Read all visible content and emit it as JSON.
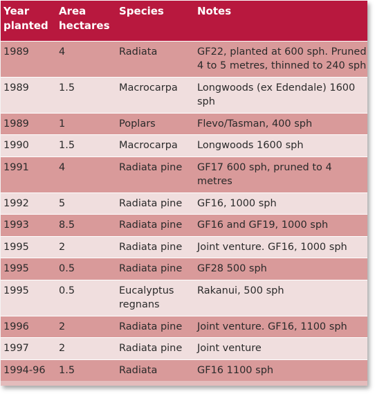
{
  "table": {
    "headers": [
      "Year planted",
      "Area hectares",
      "Species",
      "Notes"
    ],
    "rows": [
      {
        "year": "1989",
        "area": "4",
        "species": "Radiata",
        "notes": "GF22, planted at 600 sph. Pruned 4 to 5 metres, thinned to 240 sph"
      },
      {
        "year": "1989",
        "area": "1.5",
        "species": "Macrocarpa",
        "notes": "Longwoods (ex Edendale) 1600 sph"
      },
      {
        "year": "1989",
        "area": "1",
        "species": "Poplars",
        "notes": "Flevo/Tasman, 400 sph"
      },
      {
        "year": "1990",
        "area": "1.5",
        "species": "Macrocarpa",
        "notes": "Longwoods 1600 sph"
      },
      {
        "year": "1991",
        "area": "4",
        "species": "Radiata pine",
        "notes": "GF17 600 sph, pruned to 4 metres"
      },
      {
        "year": "1992",
        "area": "5",
        "species": "Radiata pine",
        "notes": "GF16, 1000 sph"
      },
      {
        "year": "1993",
        "area": "8.5",
        "species": "Radiata pine",
        "notes": "GF16 and GF19, 1000 sph"
      },
      {
        "year": "1995",
        "area": "2",
        "species": "Radiata pine",
        "notes": "Joint venture. GF16, 1000 sph"
      },
      {
        "year": "1995",
        "area": "0.5",
        "species": "Radiata pine",
        "notes": "GF28 500 sph"
      },
      {
        "year": "1995",
        "area": "0.5",
        "species": "Eucalyptus regnans",
        "notes": "Rakanui, 500 sph"
      },
      {
        "year": "1996",
        "area": "2",
        "species": "Radiata pine",
        "notes": "Joint venture. GF16, 1100 sph"
      },
      {
        "year": "1997",
        "area": "2",
        "species": "Radiata pine",
        "notes": "Joint venture"
      },
      {
        "year": "1994-96",
        "area": "1.5",
        "species": "Radiata",
        "notes": "GF16 1100 sph"
      }
    ]
  },
  "colors": {
    "header_bg": "#b8183e",
    "row_dark": "#d99a9a",
    "row_light": "#f0dede"
  }
}
